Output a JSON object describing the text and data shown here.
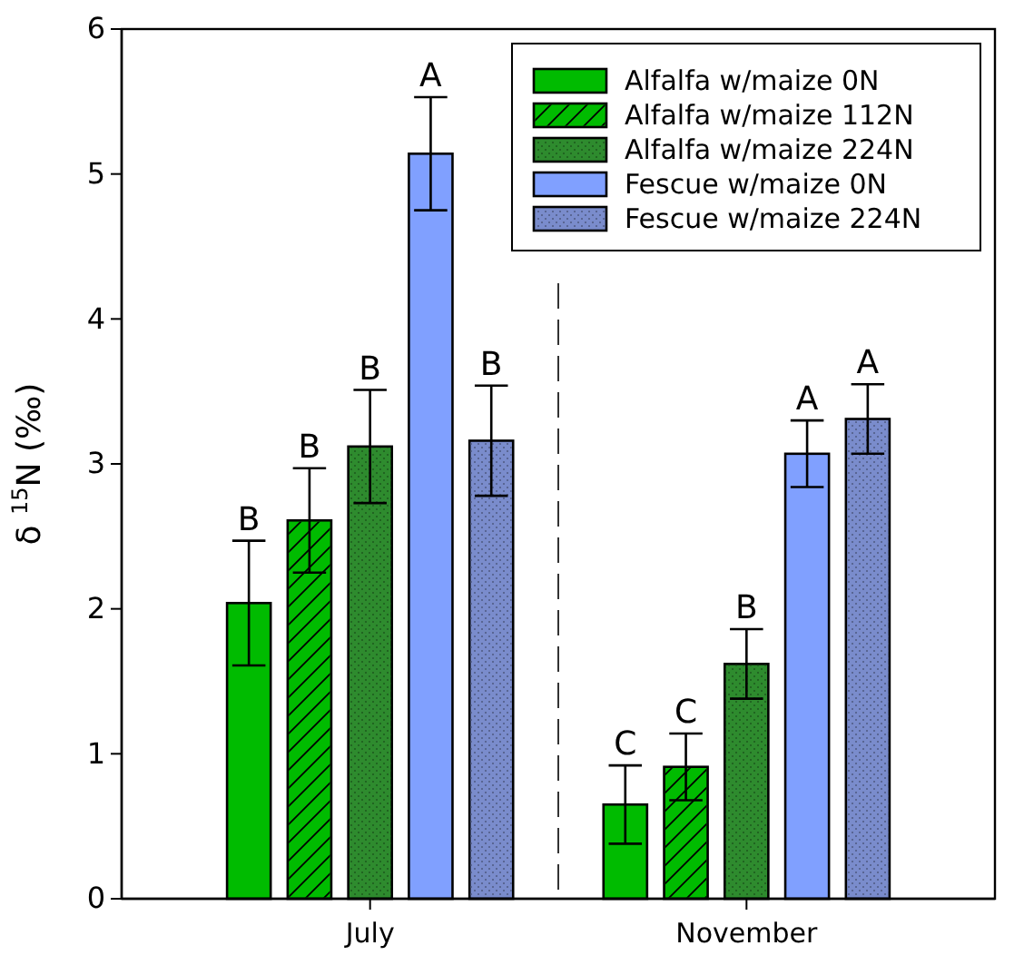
{
  "chart_data": {
    "type": "bar",
    "ylabel": "δ $^{15}$N (‰)",
    "categories": [
      "July",
      "November"
    ],
    "series": [
      {
        "name": "Alfalfa w/maize 0N",
        "color": "#00bb00",
        "values": [
          2.04,
          0.65
        ],
        "errors": [
          0.43,
          0.27
        ],
        "value_labels": [
          "B",
          "C"
        ]
      },
      {
        "name": "Alfalfa w/maize 112N",
        "color": "#00bb00",
        "values": [
          2.61,
          0.91
        ],
        "errors": [
          0.36,
          0.23
        ],
        "value_labels": [
          "B",
          "C"
        ]
      },
      {
        "name": "Alfalfa w/maize 224N",
        "color": "#2e8b2e",
        "values": [
          3.12,
          1.62
        ],
        "errors": [
          0.39,
          0.24
        ],
        "value_labels": [
          "B",
          "B"
        ]
      },
      {
        "name": "Fescue w/maize 0N",
        "color": "#80a0ff",
        "values": [
          5.14,
          3.07
        ],
        "errors": [
          0.39,
          0.23
        ],
        "value_labels": [
          "A",
          "A"
        ]
      },
      {
        "name": "Fescue w/maize 224N",
        "color": "#7a8ccc",
        "values": [
          3.16,
          3.31
        ],
        "errors": [
          0.38,
          0.24
        ],
        "value_labels": [
          "B",
          "A"
        ]
      }
    ],
    "ylim": [
      0,
      6
    ],
    "yticks": [
      0,
      1,
      2,
      3,
      4,
      5,
      6
    ],
    "grid": false,
    "legend": "top right"
  }
}
